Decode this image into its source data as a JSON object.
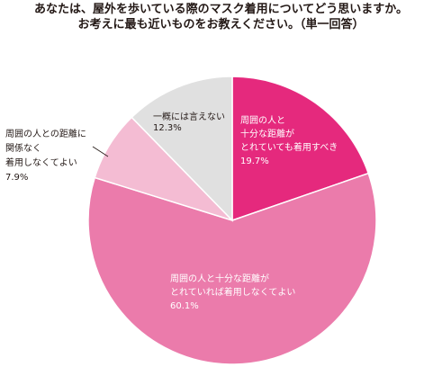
{
  "title_line1": "あなたは、屋外を歩いている際のマスク着用についてどう思いますか。",
  "title_line2": "お考えに最も近いものをお教えください。（単一回答）",
  "chart_data": {
    "type": "pie",
    "start_angle_deg": 0,
    "slices": [
      {
        "label_lines": [
          "周囲の人と",
          "十分な距離が",
          "とれていても着用すべき"
        ],
        "value_label": "19.7%",
        "value": 19.7,
        "color": "#e5297d",
        "text_color": "#ffffff"
      },
      {
        "label_lines": [
          "周囲の人と十分な距離が",
          "とれていれば着用しなくてよい"
        ],
        "value_label": "60.1%",
        "value": 60.1,
        "color": "#eb7bab",
        "text_color": "#ffffff"
      },
      {
        "label_lines": [
          "周囲の人との距離に",
          "関係なく",
          "着用しなくてよい"
        ],
        "value_label": "7.9%",
        "value": 7.9,
        "color": "#f4bcd3",
        "text_color": "#231815"
      },
      {
        "label_lines": [
          "一概には言えない"
        ],
        "value_label": "12.3%",
        "value": 12.3,
        "color": "#e0e0e0",
        "text_color": "#231815"
      }
    ]
  }
}
